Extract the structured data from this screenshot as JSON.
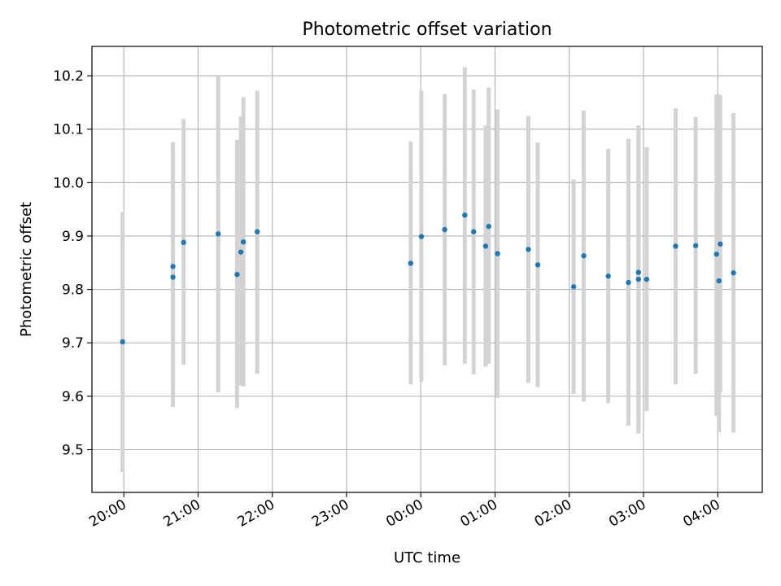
{
  "chart_data": {
    "type": "scatter",
    "title": "Photometric offset variation",
    "xlabel": "UTC time",
    "ylabel": "Photometric offset",
    "x_unit": "hours",
    "xlim": [
      19.57,
      28.6
    ],
    "ylim": [
      9.42,
      10.255
    ],
    "grid": true,
    "x_ticks": [
      {
        "value": 20,
        "label": "20:00"
      },
      {
        "value": 21,
        "label": "21:00"
      },
      {
        "value": 22,
        "label": "22:00"
      },
      {
        "value": 23,
        "label": "23:00"
      },
      {
        "value": 24,
        "label": "00:00"
      },
      {
        "value": 25,
        "label": "01:00"
      },
      {
        "value": 26,
        "label": "02:00"
      },
      {
        "value": 27,
        "label": "03:00"
      },
      {
        "value": 28,
        "label": "04:00"
      }
    ],
    "y_ticks": [
      {
        "value": 9.5,
        "label": "9.5"
      },
      {
        "value": 9.6,
        "label": "9.6"
      },
      {
        "value": 9.7,
        "label": "9.7"
      },
      {
        "value": 9.8,
        "label": "9.8"
      },
      {
        "value": 9.9,
        "label": "9.9"
      },
      {
        "value": 10.0,
        "label": "10.0"
      },
      {
        "value": 10.1,
        "label": "10.1"
      },
      {
        "value": 10.2,
        "label": "10.2"
      }
    ],
    "point_color": "#1f77b4",
    "errorbar_color": "#d3d3d3",
    "points": [
      {
        "x": 19.983,
        "y": 9.702,
        "low": 9.458,
        "high": 9.945
      },
      {
        "x": 20.661,
        "y": 9.843,
        "low": 9.603,
        "high": 10.076
      },
      {
        "x": 20.661,
        "y": 9.823,
        "low": 9.58,
        "high": 10.068
      },
      {
        "x": 20.805,
        "y": 9.888,
        "low": 9.659,
        "high": 10.119
      },
      {
        "x": 21.271,
        "y": 9.904,
        "low": 9.607,
        "high": 10.2
      },
      {
        "x": 21.525,
        "y": 9.828,
        "low": 9.578,
        "high": 10.08
      },
      {
        "x": 21.576,
        "y": 9.87,
        "low": 9.62,
        "high": 10.124
      },
      {
        "x": 21.61,
        "y": 9.889,
        "low": 9.618,
        "high": 10.16
      },
      {
        "x": 21.797,
        "y": 9.908,
        "low": 9.642,
        "high": 10.172
      },
      {
        "x": 23.864,
        "y": 9.849,
        "low": 9.622,
        "high": 10.077
      },
      {
        "x": 24.008,
        "y": 9.899,
        "low": 9.627,
        "high": 10.172
      },
      {
        "x": 24.322,
        "y": 9.912,
        "low": 9.658,
        "high": 10.166
      },
      {
        "x": 24.593,
        "y": 9.939,
        "low": 9.661,
        "high": 10.216
      },
      {
        "x": 24.712,
        "y": 9.908,
        "low": 9.641,
        "high": 10.174
      },
      {
        "x": 24.873,
        "y": 9.881,
        "low": 9.655,
        "high": 10.107
      },
      {
        "x": 24.915,
        "y": 9.918,
        "low": 9.661,
        "high": 10.178
      },
      {
        "x": 25.034,
        "y": 9.867,
        "low": 9.597,
        "high": 10.137
      },
      {
        "x": 25.449,
        "y": 9.875,
        "low": 9.625,
        "high": 10.125
      },
      {
        "x": 25.576,
        "y": 9.846,
        "low": 9.617,
        "high": 10.075
      },
      {
        "x": 26.059,
        "y": 9.805,
        "low": 9.604,
        "high": 10.006
      },
      {
        "x": 26.195,
        "y": 9.863,
        "low": 9.59,
        "high": 10.135
      },
      {
        "x": 26.525,
        "y": 9.825,
        "low": 9.587,
        "high": 10.063
      },
      {
        "x": 26.797,
        "y": 9.813,
        "low": 9.545,
        "high": 10.082
      },
      {
        "x": 26.932,
        "y": 9.832,
        "low": 9.558,
        "high": 10.106
      },
      {
        "x": 26.932,
        "y": 9.819,
        "low": 9.53,
        "high": 10.107
      },
      {
        "x": 27.042,
        "y": 9.819,
        "low": 9.572,
        "high": 10.066
      },
      {
        "x": 27.432,
        "y": 9.881,
        "low": 9.622,
        "high": 10.139
      },
      {
        "x": 27.703,
        "y": 9.882,
        "low": 9.642,
        "high": 10.123
      },
      {
        "x": 27.983,
        "y": 9.866,
        "low": 9.563,
        "high": 10.165
      },
      {
        "x": 28.017,
        "y": 9.816,
        "low": 9.533,
        "high": 10.165
      },
      {
        "x": 28.034,
        "y": 9.885,
        "low": 9.607,
        "high": 10.163
      },
      {
        "x": 28.212,
        "y": 9.831,
        "low": 9.532,
        "high": 10.13
      }
    ]
  }
}
